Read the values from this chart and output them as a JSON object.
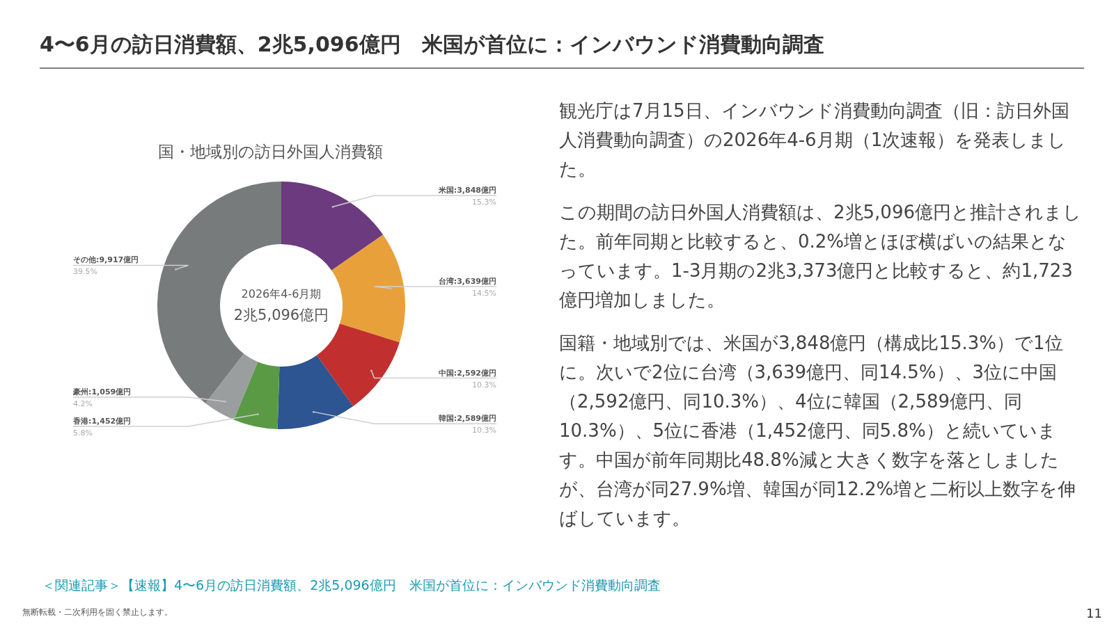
{
  "chart_data": {
    "type": "donut",
    "subtitle": "4〜6月の訪日消費額、2兆5,096億円　米国が首位に：インバウンド消費動向調査",
    "title": "国・地域別の訪日外国人消費額",
    "categories": [
      "米国",
      "台湾",
      "中国",
      "韓国",
      "香港",
      "豪州",
      "その他"
    ],
    "values": [
      3848,
      3639,
      2592,
      2589,
      1452,
      1059,
      9917
    ],
    "value_labels": [
      ":3,848億円\n15.3%",
      ":3,639億円\n14.5%",
      ":2,592億円\n10.3%",
      ":2,589億円\n10.3%",
      ":1,452億円\n5.8%",
      ":1,059億円\n4.2%",
      ":9,917億円\n39.5%"
    ],
    "colors": [
      "#6c3a7e",
      "#e8a13a",
      "#c1302f",
      "#2c5592",
      "#5a9a45",
      "#9b9e9e",
      "#777b7c"
    ],
    "legend": false,
    "annotations": [
      "2026年4-6月期",
      "2兆5,096億円",
      "観光庁は7月15日、インバウンド消費動向調査（旧：訪日外国人消費動向調査）の2026年4-6月期（1次速報）を発表しました。",
      "この期間の訪日外国人消費額は、2兆5,096億円と推計されました。前年同期と比較すると、0.2%増とほぼ横ばいの結果となっています。1-3月期の2兆3,373億円と比較すると、約1,723億円増加しました。",
      "国籍・地域別では、米国が3,848億円（構成比15.3%）で1位に。次いで2位に台湾（3,639億円、同14.5%）、3位に中国（2,592億円、同10.3%）、4位に韓国（2,589億円、同10.3%）、5位に香港（1,452億円、同5.8%）と続いています。中国が前年同期比48.8%減と大きく数字を落としましたが、台湾が同27.9%増、韓国が同12.2%増と二桁以上数字を伸ばしています。",
      "＜関連記事＞【速報】4〜6月の訪日消費額、2兆5,096億円　米国が首位に：インバウンド消費動向調査",
      "無断転載・二次利用を固く禁止します。",
      "11"
    ]
  }
}
